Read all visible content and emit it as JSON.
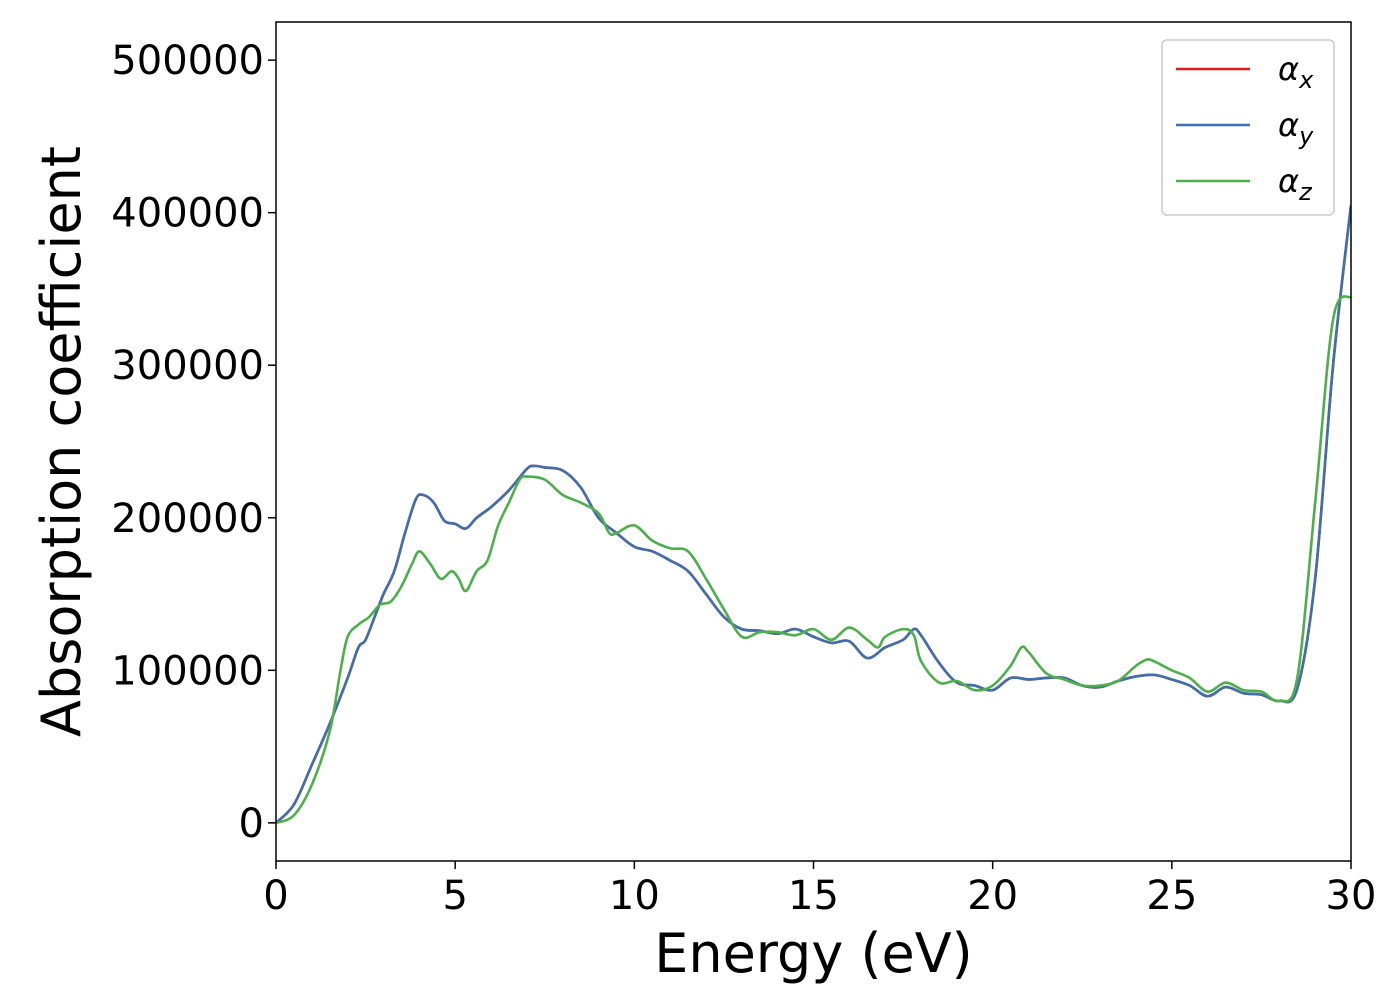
{
  "chart_data": {
    "type": "line",
    "title": "",
    "xlabel": "Energy (eV)",
    "ylabel": "Absorption coefficient",
    "xlim": [
      0,
      30
    ],
    "ylim": [
      -25000,
      525000
    ],
    "xticks": [
      0,
      5,
      10,
      15,
      20,
      25,
      30
    ],
    "xtick_labels": [
      "0",
      "5",
      "10",
      "15",
      "20",
      "25",
      "30"
    ],
    "yticks": [
      0,
      100000,
      200000,
      300000,
      400000,
      500000
    ],
    "ytick_labels": [
      "0",
      "100000",
      "200000",
      "300000",
      "400000",
      "500000"
    ],
    "grid": false,
    "legend": {
      "placement": "top-right",
      "entries": [
        {
          "symbol": "α",
          "subscript": "x"
        },
        {
          "symbol": "α",
          "subscript": "y"
        },
        {
          "symbol": "α",
          "subscript": "z"
        }
      ]
    },
    "series": [
      {
        "name": "αx",
        "color": "#e41a1c",
        "x": [
          0,
          0.5,
          1,
          1.5,
          2,
          2.3,
          2.5,
          2.8,
          3,
          3.3,
          3.6,
          3.9,
          4.1,
          4.4,
          4.7,
          5,
          5.3,
          5.6,
          6,
          6.5,
          7,
          7.2,
          7.5,
          8,
          8.5,
          9,
          9.5,
          10,
          10.5,
          11,
          11.5,
          12,
          12.5,
          13,
          13.5,
          14,
          14.5,
          15,
          15.5,
          16,
          16.5,
          17,
          17.5,
          17.8,
          18,
          18.5,
          19,
          19.5,
          20,
          20.5,
          21,
          21.5,
          22,
          22.5,
          23,
          23.5,
          24,
          24.5,
          25,
          25.5,
          26,
          26.5,
          27,
          27.5,
          28,
          28.5,
          29,
          29.5,
          30
        ],
        "y": [
          0,
          12000,
          38000,
          65000,
          95000,
          115000,
          120000,
          138000,
          150000,
          165000,
          190000,
          212000,
          215000,
          210000,
          198000,
          196000,
          193000,
          200000,
          207000,
          218000,
          232000,
          234000,
          233000,
          231000,
          220000,
          200000,
          190000,
          181000,
          178000,
          172000,
          165000,
          150000,
          135000,
          127000,
          126000,
          124000,
          127000,
          122000,
          118000,
          119000,
          108000,
          115000,
          120000,
          127000,
          123000,
          105000,
          92000,
          90000,
          87000,
          95000,
          94000,
          95000,
          95000,
          90000,
          89000,
          93000,
          96000,
          97000,
          94000,
          90000,
          83000,
          89000,
          85000,
          84000,
          80000,
          88000,
          160000,
          300000,
          405000
        ]
      },
      {
        "name": "αy",
        "color": "#3e6fae",
        "x": [
          0,
          0.5,
          1,
          1.5,
          2,
          2.3,
          2.5,
          2.8,
          3,
          3.3,
          3.6,
          3.9,
          4.1,
          4.4,
          4.7,
          5,
          5.3,
          5.6,
          6,
          6.5,
          7,
          7.2,
          7.5,
          8,
          8.5,
          9,
          9.5,
          10,
          10.5,
          11,
          11.5,
          12,
          12.5,
          13,
          13.5,
          14,
          14.5,
          15,
          15.5,
          16,
          16.5,
          17,
          17.5,
          17.8,
          18,
          18.5,
          19,
          19.5,
          20,
          20.5,
          21,
          21.5,
          22,
          22.5,
          23,
          23.5,
          24,
          24.5,
          25,
          25.5,
          26,
          26.5,
          27,
          27.5,
          28,
          28.5,
          29,
          29.5,
          30
        ],
        "y": [
          0,
          12000,
          38000,
          65000,
          95000,
          115000,
          120000,
          138000,
          150000,
          165000,
          190000,
          212000,
          215000,
          210000,
          198000,
          196000,
          193000,
          200000,
          207000,
          218000,
          232000,
          234000,
          233000,
          231000,
          220000,
          200000,
          190000,
          181000,
          178000,
          172000,
          165000,
          150000,
          135000,
          127000,
          126000,
          124000,
          127000,
          122000,
          118000,
          119000,
          108000,
          115000,
          120000,
          127000,
          123000,
          105000,
          92000,
          90000,
          87000,
          95000,
          94000,
          95000,
          95000,
          90000,
          89000,
          93000,
          96000,
          97000,
          94000,
          90000,
          83000,
          89000,
          85000,
          84000,
          80000,
          88000,
          160000,
          300000,
          405000
        ]
      },
      {
        "name": "αz",
        "color": "#4daf4a",
        "x": [
          0,
          0.5,
          1,
          1.5,
          1.8,
          2,
          2.3,
          2.6,
          2.9,
          3.2,
          3.5,
          3.8,
          4.0,
          4.3,
          4.6,
          4.9,
          5.1,
          5.3,
          5.6,
          5.9,
          6.2,
          6.5,
          6.8,
          7,
          7.5,
          8,
          8.5,
          9,
          9.3,
          9.5,
          10,
          10.5,
          11,
          11.5,
          12,
          12.5,
          13,
          13.5,
          14,
          14.5,
          15,
          15.5,
          16,
          16.5,
          16.8,
          17,
          17.5,
          17.8,
          18,
          18.5,
          19,
          19.5,
          20,
          20.5,
          20.8,
          21,
          21.5,
          22,
          22.5,
          23,
          23.5,
          24,
          24.3,
          24.5,
          25,
          25.5,
          26,
          26.5,
          27,
          27.5,
          28,
          28.5,
          29,
          29.5,
          30
        ],
        "y": [
          0,
          5000,
          25000,
          60000,
          100000,
          122000,
          130000,
          135000,
          143000,
          145000,
          155000,
          170000,
          178000,
          170000,
          160000,
          165000,
          160000,
          152000,
          165000,
          172000,
          195000,
          210000,
          225000,
          227000,
          225000,
          215000,
          210000,
          203000,
          190000,
          190000,
          195000,
          185000,
          180000,
          178000,
          160000,
          140000,
          122000,
          125000,
          125000,
          123000,
          127000,
          120000,
          128000,
          120000,
          115000,
          122000,
          127000,
          123000,
          106000,
          92000,
          93000,
          87000,
          90000,
          103000,
          115000,
          112000,
          98000,
          94000,
          90000,
          90000,
          93000,
          103000,
          107000,
          106000,
          100000,
          95000,
          86000,
          92000,
          87000,
          86000,
          80000,
          95000,
          210000,
          330000,
          345000
        ]
      }
    ]
  }
}
